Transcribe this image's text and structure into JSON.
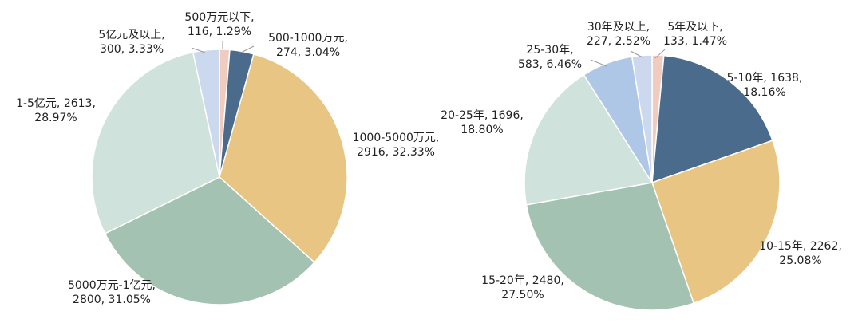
{
  "colors": {
    "slice_1": "#f0ccc0",
    "slice_2": "#4a6b8c",
    "slice_3": "#e8c582",
    "slice_4": "#a4c2b1",
    "slice_5": "#cfe3dc",
    "slice_6": "#afc7e6",
    "slice_7": "#cbd8ed"
  },
  "chart_data": [
    {
      "type": "pie",
      "title": "",
      "slices": [
        {
          "name": "500万元以下",
          "value": 116,
          "percent": "1.29%",
          "label_1": "500万元以下,",
          "label_2": "116, 1.29%"
        },
        {
          "name": "500-1000万元",
          "value": 274,
          "percent": "3.04%",
          "label_1": "500-1000万元,",
          "label_2": "274, 3.04%"
        },
        {
          "name": "1000-5000万元",
          "value": 2916,
          "percent": "32.33%",
          "label_1": "1000-5000万元,",
          "label_2": "2916, 32.33%"
        },
        {
          "name": "5000万元-1亿元",
          "value": 2800,
          "percent": "31.05%",
          "label_1": "5000万元-1亿元,",
          "label_2": "2800, 31.05%"
        },
        {
          "name": "1-5亿元",
          "value": 2613,
          "percent": "28.97%",
          "label_1": "1-5亿元, 2613,",
          "label_2": "28.97%"
        },
        {
          "name": "5亿元及以上",
          "value": 300,
          "percent": "3.33%",
          "label_1": "5亿元及以上,",
          "label_2": "300, 3.33%"
        }
      ]
    },
    {
      "type": "pie",
      "title": "",
      "slices": [
        {
          "name": "5年及以下",
          "value": 133,
          "percent": "1.47%",
          "label_1": "5年及以下,",
          "label_2": "133, 1.47%"
        },
        {
          "name": "5-10年",
          "value": 1638,
          "percent": "18.16%",
          "label_1": "5-10年, 1638,",
          "label_2": "18.16%"
        },
        {
          "name": "10-15年",
          "value": 2262,
          "percent": "25.08%",
          "label_1": "10-15年, 2262,",
          "label_2": "25.08%"
        },
        {
          "name": "15-20年",
          "value": 2480,
          "percent": "27.50%",
          "label_1": "15-20年, 2480,",
          "label_2": "27.50%"
        },
        {
          "name": "20-25年",
          "value": 1696,
          "percent": "18.80%",
          "label_1": "20-25年, 1696,",
          "label_2": "18.80%"
        },
        {
          "name": "25-30年",
          "value": 583,
          "percent": "6.46%",
          "label_1": "25-30年,",
          "label_2": "583, 6.46%"
        },
        {
          "name": "30年及以上",
          "value": 227,
          "percent": "2.52%",
          "label_1": "30年及以上,",
          "label_2": "227, 2.52%"
        }
      ]
    }
  ]
}
